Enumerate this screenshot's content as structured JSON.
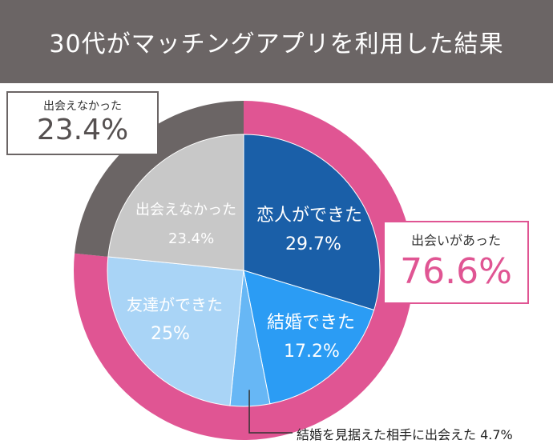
{
  "title": "30代がマッチングアプリを利用した結果",
  "colors": {
    "title_bg": "#6b6565",
    "outer_met": "#e05593",
    "outer_not_met": "#6b6565",
    "inner": [
      "#1a5fa8",
      "#2b9cf4",
      "#67b7f5",
      "#a9d4f6",
      "#c8c8c8"
    ],
    "callout_gray": "#555050",
    "callout_pink": "#e05593"
  },
  "chart_data": [
    {
      "type": "pie",
      "role": "inner",
      "categories": [
        "恋人ができた",
        "結婚できた",
        "結婚を見据えた相手に出会えた",
        "友達ができた",
        "出会えなかった"
      ],
      "values": [
        29.7,
        17.2,
        4.7,
        25,
        23.4
      ],
      "labels": [
        "29.7%",
        "17.2%",
        "4.7%",
        "25%",
        "23.4%"
      ]
    },
    {
      "type": "pie",
      "role": "outer",
      "categories": [
        "出会いがあった",
        "出会えなかった"
      ],
      "values": [
        76.6,
        23.4
      ],
      "labels": [
        "76.6%",
        "23.4%"
      ]
    }
  ],
  "callouts": {
    "not_met": {
      "label": "出会えなかった",
      "value": "23.4%"
    },
    "met": {
      "label": "出会いがあった",
      "value": "76.6%"
    }
  },
  "footnote": "結婚を見据えた相手に出会えた 4.7%"
}
